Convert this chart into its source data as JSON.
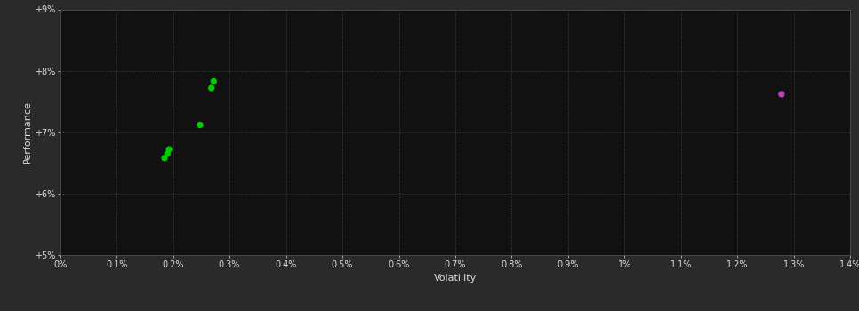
{
  "background_color": "#2a2a2a",
  "plot_bg_color": "#111111",
  "grid_color": "#444444",
  "text_color": "#dddddd",
  "green_points": [
    [
      0.185,
      6.58
    ],
    [
      0.19,
      6.65
    ],
    [
      0.193,
      6.72
    ],
    [
      0.248,
      7.12
    ],
    [
      0.268,
      7.72
    ],
    [
      0.272,
      7.83
    ]
  ],
  "magenta_points": [
    [
      1.278,
      7.62
    ]
  ],
  "xlim": [
    0.0,
    1.4
  ],
  "ylim": [
    5.0,
    9.0
  ],
  "xtick_values": [
    0.0,
    0.1,
    0.2,
    0.3,
    0.4,
    0.5,
    0.6,
    0.7,
    0.8,
    0.9,
    1.0,
    1.1,
    1.2,
    1.3,
    1.4
  ],
  "ytick_values": [
    5.0,
    6.0,
    7.0,
    8.0,
    9.0
  ],
  "xlabel": "Volatility",
  "ylabel": "Performance",
  "marker_size": 28,
  "green_color": "#00cc00",
  "magenta_color": "#bb44bb",
  "grid_linestyle": ":",
  "grid_linewidth": 0.7
}
